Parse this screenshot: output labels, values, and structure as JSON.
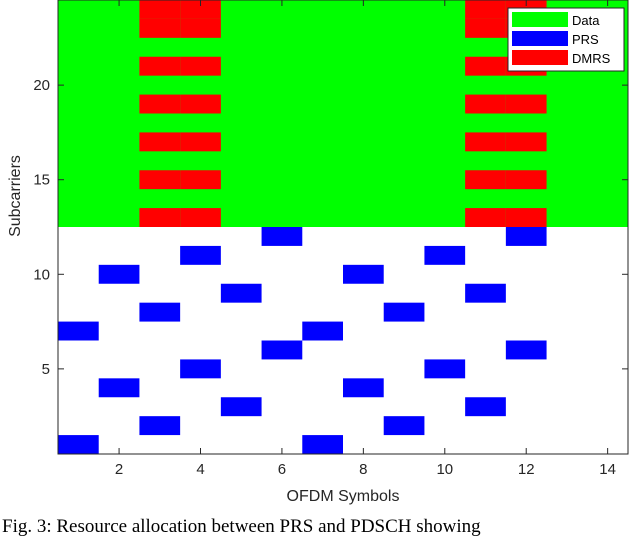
{
  "chart_data": {
    "type": "heatmap",
    "xlabel": "OFDM Symbols",
    "ylabel": "Subcarriers",
    "xlim": [
      0.5,
      14.5
    ],
    "ylim": [
      0.5,
      24.5
    ],
    "xticks": [
      2,
      4,
      6,
      8,
      10,
      12,
      14
    ],
    "yticks": [
      5,
      10,
      15,
      20
    ],
    "grid": false,
    "legend_position": "top-right",
    "colors": {
      "Data": "#00ff00",
      "PRS": "#0000ff",
      "DMRS": "#ff0000",
      "background": "#ffffff"
    },
    "series": [
      {
        "name": "Data",
        "region": {
          "x_from": 1,
          "x_to": 14,
          "y_from": 13,
          "y_to": 24
        }
      },
      {
        "name": "PRS",
        "points": [
          [
            1,
            1
          ],
          [
            1,
            7
          ],
          [
            2,
            4
          ],
          [
            2,
            10
          ],
          [
            3,
            2
          ],
          [
            3,
            8
          ],
          [
            4,
            5
          ],
          [
            4,
            11
          ],
          [
            5,
            3
          ],
          [
            5,
            9
          ],
          [
            6,
            6
          ],
          [
            6,
            12
          ],
          [
            7,
            1
          ],
          [
            7,
            7
          ],
          [
            8,
            4
          ],
          [
            8,
            10
          ],
          [
            9,
            2
          ],
          [
            9,
            8
          ],
          [
            10,
            5
          ],
          [
            10,
            11
          ],
          [
            11,
            3
          ],
          [
            11,
            9
          ],
          [
            12,
            6
          ],
          [
            12,
            12
          ]
        ]
      },
      {
        "name": "DMRS",
        "points": [
          [
            3,
            13
          ],
          [
            3,
            15
          ],
          [
            3,
            17
          ],
          [
            3,
            19
          ],
          [
            3,
            21
          ],
          [
            3,
            23
          ],
          [
            3,
            24
          ],
          [
            4,
            13
          ],
          [
            4,
            15
          ],
          [
            4,
            17
          ],
          [
            4,
            19
          ],
          [
            4,
            21
          ],
          [
            4,
            23
          ],
          [
            4,
            24
          ],
          [
            11,
            13
          ],
          [
            11,
            15
          ],
          [
            11,
            17
          ],
          [
            11,
            19
          ],
          [
            11,
            21
          ],
          [
            11,
            23
          ],
          [
            11,
            24
          ],
          [
            12,
            13
          ],
          [
            12,
            15
          ],
          [
            12,
            17
          ],
          [
            12,
            19
          ],
          [
            12,
            21
          ],
          [
            12,
            23
          ],
          [
            12,
            24
          ]
        ]
      }
    ]
  },
  "caption": "Fig. 3: Resource allocation between PRS and PDSCH showing"
}
